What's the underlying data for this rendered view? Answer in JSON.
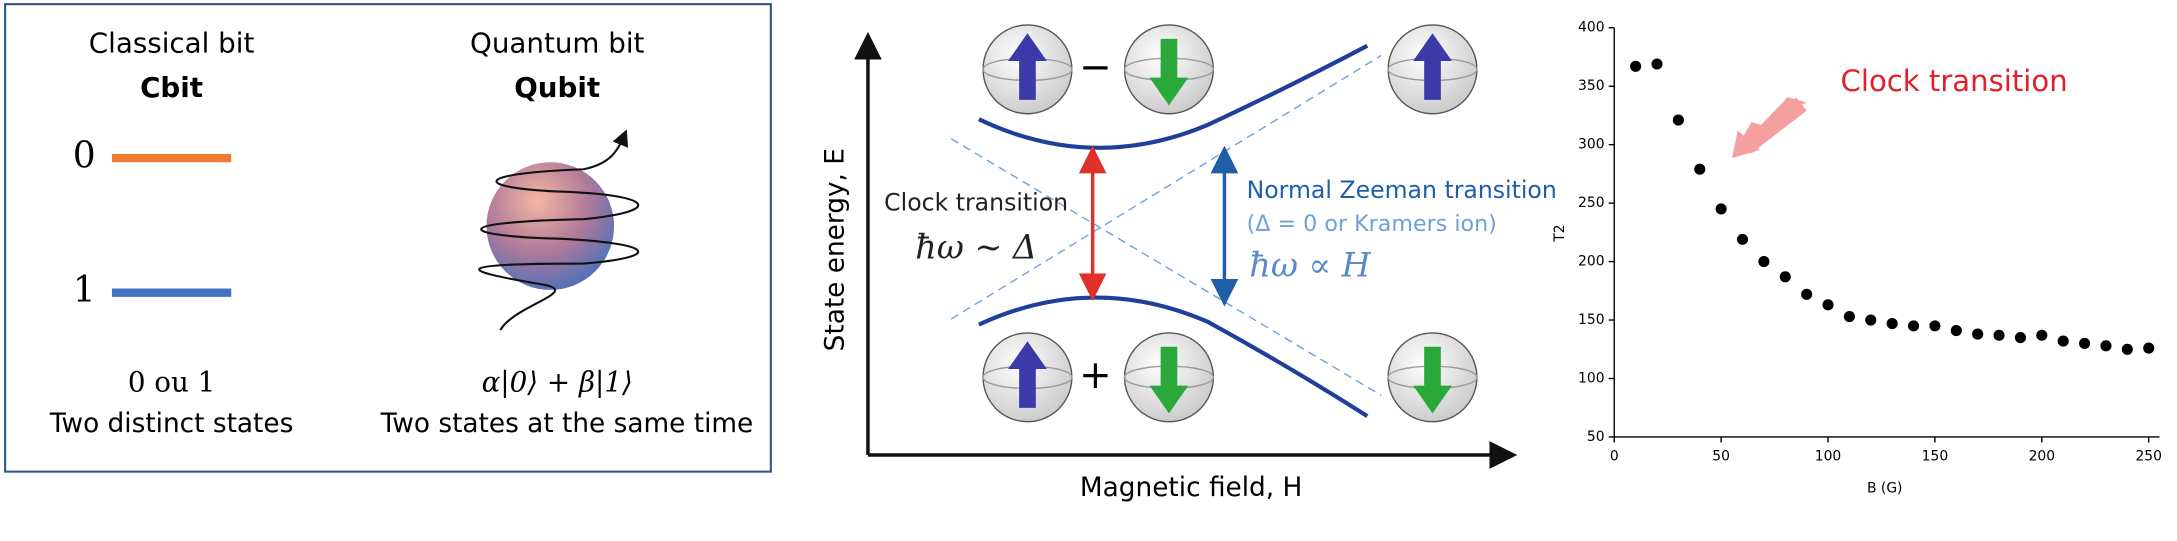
{
  "left_panel": {
    "classical_title": "Classical bit",
    "classical_name": "Cbit",
    "quantum_title": "Quantum bit",
    "quantum_name": "Qubit",
    "level_0": "0",
    "level_1": "1",
    "classical_states": "0 ou 1",
    "classical_caption": "Two distinct states",
    "qubit_state": "α|0⟩ + β|1⟩",
    "qubit_caption": "Two states at the same time"
  },
  "middle_panel": {
    "y_axis": "State energy, E",
    "x_axis": "Magnetic field, H",
    "clock_label": "Clock transition",
    "clock_formula": "ħω ~ Δ",
    "zeeman_label": "Normal Zeeman transition",
    "zeeman_note": "(Δ = 0 or Kramers ion)",
    "zeeman_formula": "ħω ∝ H",
    "minus_sign": "−",
    "plus_sign": "+"
  },
  "chart_data": {
    "type": "scatter",
    "annotation": "Clock transition",
    "xlabel": "B (G)",
    "ylabel": "T2",
    "x": [
      10,
      20,
      30,
      40,
      50,
      60,
      70,
      80,
      90,
      100,
      110,
      120,
      130,
      140,
      150,
      160,
      170,
      180,
      190,
      200,
      210,
      220,
      230,
      240,
      250
    ],
    "values": [
      367,
      369,
      321,
      279,
      245,
      219,
      200,
      187,
      172,
      163,
      153,
      150,
      147,
      145,
      145,
      141,
      138,
      137,
      135,
      137,
      132,
      130,
      128,
      125,
      126
    ],
    "color": "#000000",
    "xlim": [
      0,
      255
    ],
    "ylim": [
      50,
      400
    ],
    "xticks": [
      0,
      50,
      100,
      150,
      200,
      250
    ],
    "yticks": [
      50,
      100,
      150,
      200,
      250,
      300,
      350,
      400
    ]
  }
}
